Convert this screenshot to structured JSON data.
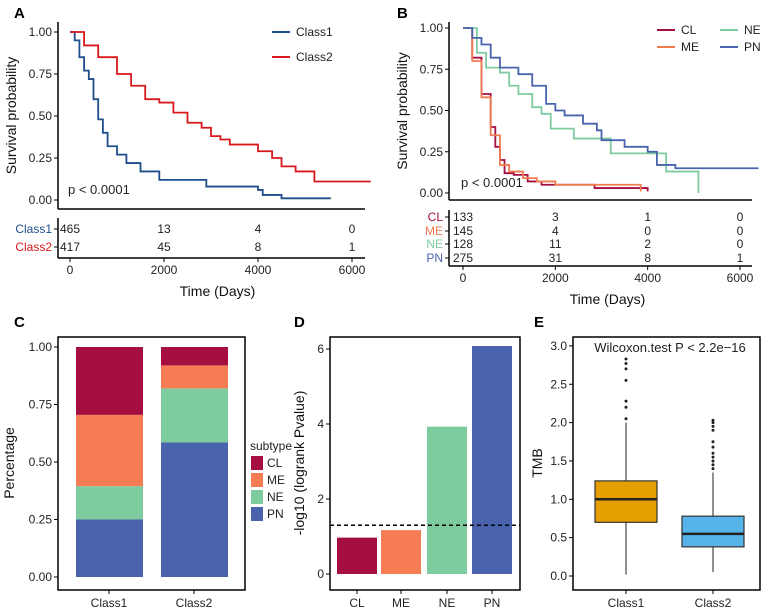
{
  "chart_data": [
    {
      "panel": "A",
      "type": "line",
      "ylabel": "Survival probability",
      "xlabel": "Time (Days)",
      "xlim": [
        0,
        6400
      ],
      "ylim": [
        0,
        1
      ],
      "xticks": [
        0,
        2000,
        4000,
        6000
      ],
      "yticks": [
        "0.00",
        "0.25",
        "0.50",
        "0.75",
        "1.00"
      ],
      "annotation": "p < 0.0001",
      "legend": "top-right",
      "series": [
        {
          "name": "Class1",
          "color": "#1f4e8c",
          "risk": [
            465,
            13,
            4,
            0
          ],
          "x": [
            0,
            100,
            200,
            300,
            400,
            500,
            600,
            700,
            800,
            1000,
            1200,
            1500,
            1900,
            2800,
            2900,
            3800,
            4000,
            4100,
            4500,
            5550
          ],
          "y": [
            1,
            0.95,
            0.85,
            0.77,
            0.72,
            0.6,
            0.48,
            0.4,
            0.32,
            0.27,
            0.22,
            0.17,
            0.12,
            0.12,
            0.08,
            0.08,
            0.06,
            0.03,
            0.01,
            0.01
          ]
        },
        {
          "name": "Class2",
          "color": "#d7191c",
          "risk": [
            417,
            45,
            8,
            1
          ],
          "x": [
            0,
            300,
            600,
            1000,
            1300,
            1600,
            1900,
            2200,
            2500,
            2800,
            3000,
            3200,
            3400,
            3700,
            4000,
            4300,
            4500,
            4800,
            5200,
            6400
          ],
          "y": [
            1,
            0.92,
            0.85,
            0.75,
            0.68,
            0.6,
            0.58,
            0.52,
            0.46,
            0.43,
            0.38,
            0.36,
            0.33,
            0.33,
            0.29,
            0.25,
            0.2,
            0.17,
            0.11,
            0.11
          ]
        }
      ]
    },
    {
      "panel": "B",
      "type": "line",
      "ylabel": "Survival probability",
      "xlabel": "Time (Days)",
      "xlim": [
        0,
        6400
      ],
      "ylim": [
        0,
        1
      ],
      "xticks": [
        0,
        2000,
        4000,
        6000
      ],
      "yticks": [
        "0.00",
        "0.25",
        "0.50",
        "0.75",
        "1.00"
      ],
      "annotation": "p < 0.0001",
      "legend": "top-right",
      "series": [
        {
          "name": "CL",
          "color": "#a50f40",
          "risk": [
            133,
            3,
            1,
            0
          ],
          "x": [
            0,
            200,
            400,
            600,
            700,
            800,
            900,
            1100,
            1400,
            1700,
            2800,
            2850,
            3900,
            4000
          ],
          "y": [
            1,
            0.82,
            0.6,
            0.4,
            0.28,
            0.2,
            0.12,
            0.11,
            0.07,
            0.05,
            0.05,
            0.03,
            0.03,
            0.01
          ]
        },
        {
          "name": "ME",
          "color": "#f07b50",
          "risk": [
            145,
            4,
            0,
            0
          ],
          "x": [
            0,
            200,
            400,
            600,
            800,
            1000,
            1300,
            1600,
            2000,
            3850,
            3850
          ],
          "y": [
            1,
            0.8,
            0.58,
            0.35,
            0.17,
            0.13,
            0.09,
            0.07,
            0.05,
            0.04,
            0.01
          ]
        },
        {
          "name": "NE",
          "color": "#7fcba0",
          "risk": [
            128,
            11,
            2,
            0
          ],
          "x": [
            0,
            300,
            500,
            800,
            1000,
            1200,
            1500,
            1700,
            1900,
            1900,
            2400,
            2400,
            3100,
            3200,
            4400,
            4400,
            5100,
            5100
          ],
          "y": [
            1,
            0.85,
            0.76,
            0.73,
            0.65,
            0.6,
            0.52,
            0.48,
            0.48,
            0.39,
            0.39,
            0.33,
            0.33,
            0.24,
            0.24,
            0.13,
            0.13,
            0
          ]
        },
        {
          "name": "PN",
          "color": "#4a63ad",
          "risk": [
            275,
            31,
            8,
            1
          ],
          "x": [
            0,
            200,
            400,
            600,
            800,
            1200,
            1500,
            1800,
            2000,
            2200,
            2600,
            2900,
            3000,
            3500,
            4000,
            4200,
            4600,
            6400
          ],
          "y": [
            1,
            0.94,
            0.9,
            0.82,
            0.76,
            0.72,
            0.65,
            0.54,
            0.5,
            0.47,
            0.42,
            0.38,
            0.32,
            0.28,
            0.25,
            0.17,
            0.15,
            0.15
          ]
        }
      ]
    },
    {
      "panel": "C",
      "type": "bar",
      "stacked": true,
      "ylabel": "Percentage",
      "categories": [
        "Class1",
        "Class2"
      ],
      "ylim": [
        0,
        1
      ],
      "yticks": [
        "0.00",
        "0.25",
        "0.50",
        "0.75",
        "1.00"
      ],
      "legend_title": "subtype",
      "legend": "right",
      "series": [
        {
          "name": "CL",
          "color": "#a50f40",
          "values": [
            0.295,
            0.08
          ]
        },
        {
          "name": "ME",
          "color": "#f67c54",
          "values": [
            0.31,
            0.1
          ]
        },
        {
          "name": "NE",
          "color": "#7fcba0",
          "values": [
            0.145,
            0.235
          ]
        },
        {
          "name": "PN",
          "color": "#4a63ad",
          "values": [
            0.25,
            0.585
          ]
        }
      ]
    },
    {
      "panel": "D",
      "type": "bar",
      "ylabel": "-log10 (logrank Pvalue)",
      "categories": [
        "CL",
        "ME",
        "NE",
        "PN"
      ],
      "values": [
        0.97,
        1.17,
        3.93,
        6.08
      ],
      "colors": [
        "#a50f40",
        "#f67c54",
        "#7fcba0",
        "#4a63ad"
      ],
      "ylim": [
        -0.3,
        6.4
      ],
      "yticks": [
        "0",
        "2",
        "4",
        "6"
      ],
      "reference_line": 1.3
    },
    {
      "panel": "E",
      "type": "box",
      "ylabel": "TMB",
      "categories": [
        "Class1",
        "Class2"
      ],
      "title": "Wilcoxon.test P < 2.2e−16",
      "ylim": [
        -0.05,
        3.1
      ],
      "yticks": [
        "0.0",
        "0.5",
        "1.0",
        "1.5",
        "2.0",
        "2.5",
        "3.0"
      ],
      "boxes": [
        {
          "name": "Class1",
          "color": "#e69f00",
          "min": 0.02,
          "q1": 0.7,
          "median": 1.0,
          "q3": 1.24,
          "max": 2.0,
          "outliers": [
            2.05,
            2.2,
            2.28,
            2.55,
            2.7,
            2.77,
            2.83
          ]
        },
        {
          "name": "Class2",
          "color": "#56b4e9",
          "min": 0.05,
          "q1": 0.38,
          "median": 0.55,
          "q3": 0.78,
          "max": 1.35,
          "outliers": [
            1.4,
            1.45,
            1.5,
            1.55,
            1.6,
            1.68,
            1.75,
            1.9,
            1.95,
            2.0,
            2.03
          ]
        }
      ]
    }
  ]
}
